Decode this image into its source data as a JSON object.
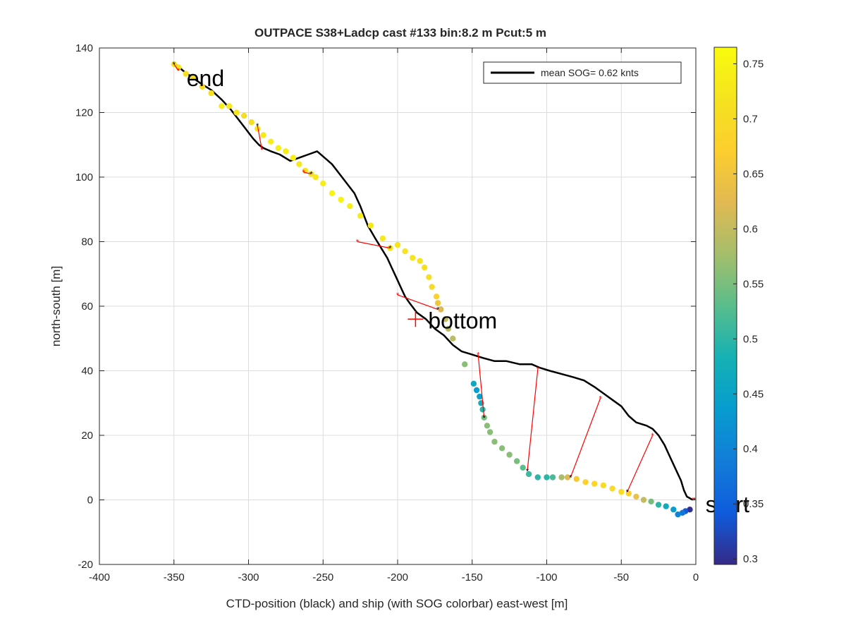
{
  "chart_data": {
    "type": "scatter",
    "title": "OUTPACE S38+Ladcp cast #133 bin:8.2 m  Pcut:5 m",
    "xlabel": "CTD-position (black) and ship (with SOG colorbar) east-west [m]",
    "ylabel": "north-south [m]",
    "xlim": [
      -400,
      0
    ],
    "ylim": [
      -20,
      140
    ],
    "xticks": [
      -400,
      -350,
      -300,
      -250,
      -200,
      -150,
      -100,
      -50,
      0
    ],
    "yticks": [
      -20,
      0,
      20,
      40,
      60,
      80,
      100,
      120,
      140
    ],
    "grid": true,
    "legend": {
      "entries": [
        "mean SOG=  0.62 knts"
      ],
      "placement": "top-right"
    },
    "colorbar": {
      "label": "",
      "range": [
        0.295,
        0.765
      ],
      "ticks": [
        0.3,
        0.35,
        0.4,
        0.45,
        0.5,
        0.55,
        0.6,
        0.65,
        0.7,
        0.75
      ],
      "colormap": "parula"
    },
    "annotations": [
      {
        "text": "end",
        "x": -350,
        "y": 131
      },
      {
        "text": "bottom",
        "x": -188,
        "y": 56
      },
      {
        "text": "start",
        "x": -2,
        "y": -1
      }
    ],
    "bottom_marker": {
      "x": -188,
      "y": 56
    },
    "ctd_track": [
      [
        -2,
        0
      ],
      [
        -6,
        1
      ],
      [
        -8,
        3
      ],
      [
        -10,
        6
      ],
      [
        -13,
        9
      ],
      [
        -17,
        13
      ],
      [
        -21,
        17
      ],
      [
        -25,
        20
      ],
      [
        -29,
        22
      ],
      [
        -33,
        23
      ],
      [
        -40,
        24
      ],
      [
        -45,
        26
      ],
      [
        -50,
        29
      ],
      [
        -56,
        31
      ],
      [
        -62,
        33
      ],
      [
        -68,
        35
      ],
      [
        -75,
        37
      ],
      [
        -82,
        38
      ],
      [
        -90,
        39
      ],
      [
        -98,
        40
      ],
      [
        -105,
        41
      ],
      [
        -110,
        42
      ],
      [
        -118,
        42
      ],
      [
        -127,
        43
      ],
      [
        -135,
        43
      ],
      [
        -143,
        44
      ],
      [
        -150,
        45
      ],
      [
        -157,
        46
      ],
      [
        -163,
        48
      ],
      [
        -169,
        51
      ],
      [
        -175,
        53
      ],
      [
        -181,
        56
      ],
      [
        -187,
        58
      ],
      [
        -192,
        61
      ],
      [
        -195,
        63
      ],
      [
        -198,
        66
      ],
      [
        -201,
        69
      ],
      [
        -204,
        72
      ],
      [
        -207,
        75
      ],
      [
        -211,
        78
      ],
      [
        -215,
        81
      ],
      [
        -220,
        85
      ],
      [
        -225,
        91
      ],
      [
        -229,
        95
      ],
      [
        -234,
        98
      ],
      [
        -239,
        101
      ],
      [
        -244,
        104
      ],
      [
        -249,
        106
      ],
      [
        -254,
        108
      ],
      [
        -260,
        107
      ],
      [
        -266,
        106
      ],
      [
        -272,
        105
      ],
      [
        -279,
        107
      ],
      [
        -285,
        108
      ],
      [
        -290,
        109
      ],
      [
        -293,
        110
      ],
      [
        -297,
        112
      ],
      [
        -302,
        115
      ],
      [
        -307,
        118
      ],
      [
        -312,
        121
      ],
      [
        -318,
        124
      ],
      [
        -325,
        127
      ],
      [
        -332,
        129
      ],
      [
        -338,
        131
      ],
      [
        -344,
        133
      ],
      [
        -349,
        135
      ]
    ],
    "ship_track": [
      {
        "x": -4,
        "y": -3,
        "sog": 0.3
      },
      {
        "x": -7,
        "y": -3.5,
        "sog": 0.34
      },
      {
        "x": -9,
        "y": -4,
        "sog": 0.38
      },
      {
        "x": -12,
        "y": -4.5,
        "sog": 0.4
      },
      {
        "x": -15,
        "y": -3,
        "sog": 0.44
      },
      {
        "x": -20,
        "y": -2,
        "sog": 0.47
      },
      {
        "x": -25,
        "y": -1.5,
        "sog": 0.5
      },
      {
        "x": -30,
        "y": -0.5,
        "sog": 0.55
      },
      {
        "x": -35,
        "y": 0,
        "sog": 0.6
      },
      {
        "x": -40,
        "y": 1,
        "sog": 0.64
      },
      {
        "x": -45,
        "y": 2,
        "sog": 0.67
      },
      {
        "x": -50,
        "y": 2.5,
        "sog": 0.7
      },
      {
        "x": -56,
        "y": 3.5,
        "sog": 0.7
      },
      {
        "x": -62,
        "y": 4.5,
        "sog": 0.7
      },
      {
        "x": -68,
        "y": 5,
        "sog": 0.69
      },
      {
        "x": -74,
        "y": 5.5,
        "sog": 0.68
      },
      {
        "x": -80,
        "y": 6.5,
        "sog": 0.66
      },
      {
        "x": -86,
        "y": 7,
        "sog": 0.62
      },
      {
        "x": -90,
        "y": 7,
        "sog": 0.58
      },
      {
        "x": -96,
        "y": 7,
        "sog": 0.52
      },
      {
        "x": -100,
        "y": 7,
        "sog": 0.5
      },
      {
        "x": -106,
        "y": 7,
        "sog": 0.5
      },
      {
        "x": -112,
        "y": 8,
        "sog": 0.51
      },
      {
        "x": -116,
        "y": 10,
        "sog": 0.53
      },
      {
        "x": -120,
        "y": 12,
        "sog": 0.55
      },
      {
        "x": -125,
        "y": 14,
        "sog": 0.56
      },
      {
        "x": -130,
        "y": 16,
        "sog": 0.56
      },
      {
        "x": -135,
        "y": 18,
        "sog": 0.56
      },
      {
        "x": -138,
        "y": 21,
        "sog": 0.56
      },
      {
        "x": -140,
        "y": 23,
        "sog": 0.56
      },
      {
        "x": -142,
        "y": 25.5,
        "sog": 0.55
      },
      {
        "x": -143,
        "y": 28,
        "sog": 0.5
      },
      {
        "x": -144,
        "y": 30,
        "sog": 0.47
      },
      {
        "x": -145,
        "y": 32,
        "sog": 0.45
      },
      {
        "x": -147,
        "y": 34,
        "sog": 0.44
      },
      {
        "x": -149,
        "y": 36,
        "sog": 0.46
      },
      {
        "x": -155,
        "y": 42,
        "sog": 0.56
      },
      {
        "x": -163,
        "y": 50,
        "sog": 0.59
      },
      {
        "x": -166,
        "y": 53,
        "sog": 0.59
      },
      {
        "x": -168,
        "y": 56,
        "sog": 0.6
      },
      {
        "x": -171,
        "y": 59,
        "sog": 0.62
      },
      {
        "x": -173,
        "y": 61,
        "sog": 0.65
      },
      {
        "x": -174,
        "y": 63,
        "sog": 0.68
      },
      {
        "x": -177,
        "y": 66,
        "sog": 0.7
      },
      {
        "x": -179,
        "y": 69,
        "sog": 0.71
      },
      {
        "x": -182,
        "y": 72,
        "sog": 0.71
      },
      {
        "x": -185,
        "y": 74,
        "sog": 0.72
      },
      {
        "x": -190,
        "y": 75,
        "sog": 0.72
      },
      {
        "x": -195,
        "y": 77,
        "sog": 0.72
      },
      {
        "x": -200,
        "y": 79,
        "sog": 0.72
      },
      {
        "x": -205,
        "y": 78,
        "sog": 0.72
      },
      {
        "x": -210,
        "y": 81,
        "sog": 0.73
      },
      {
        "x": -218,
        "y": 85,
        "sog": 0.73
      },
      {
        "x": -225,
        "y": 88,
        "sog": 0.74
      },
      {
        "x": -232,
        "y": 91,
        "sog": 0.74
      },
      {
        "x": -238,
        "y": 93,
        "sog": 0.75
      },
      {
        "x": -244,
        "y": 95,
        "sog": 0.75
      },
      {
        "x": -250,
        "y": 98,
        "sog": 0.74
      },
      {
        "x": -255,
        "y": 100,
        "sog": 0.73
      },
      {
        "x": -258,
        "y": 101,
        "sog": 0.72
      },
      {
        "x": -262,
        "y": 102,
        "sog": 0.72
      },
      {
        "x": -266,
        "y": 104,
        "sog": 0.73
      },
      {
        "x": -270,
        "y": 106,
        "sog": 0.74
      },
      {
        "x": -275,
        "y": 108,
        "sog": 0.74
      },
      {
        "x": -280,
        "y": 109,
        "sog": 0.74
      },
      {
        "x": -285,
        "y": 111,
        "sog": 0.74
      },
      {
        "x": -290,
        "y": 113,
        "sog": 0.73
      },
      {
        "x": -294,
        "y": 115,
        "sog": 0.72
      },
      {
        "x": -298,
        "y": 117,
        "sog": 0.71
      },
      {
        "x": -303,
        "y": 119,
        "sog": 0.7
      },
      {
        "x": -308,
        "y": 120,
        "sog": 0.72
      },
      {
        "x": -313,
        "y": 122,
        "sog": 0.73
      },
      {
        "x": -318,
        "y": 122,
        "sog": 0.74
      },
      {
        "x": -325,
        "y": 126,
        "sog": 0.71
      },
      {
        "x": -331,
        "y": 128,
        "sog": 0.7
      },
      {
        "x": -337,
        "y": 131,
        "sog": 0.7
      },
      {
        "x": -342,
        "y": 132,
        "sog": 0.71
      },
      {
        "x": -347,
        "y": 134,
        "sog": 0.72
      },
      {
        "x": -350,
        "y": 135,
        "sog": 0.72
      }
    ],
    "connectors": [
      {
        "ship": [
          -350,
          135
        ],
        "ctd": [
          -347,
          133
        ]
      },
      {
        "ship": [
          -294,
          116
        ],
        "ctd": [
          -291,
          108.5
        ]
      },
      {
        "ship": [
          -258,
          101
        ],
        "ctd": [
          -263,
          101.5
        ]
      },
      {
        "ship": [
          -205,
          78
        ],
        "ctd": [
          -227,
          80
        ]
      },
      {
        "ship": [
          -173,
          59
        ],
        "ctd": [
          -200,
          63.5
        ]
      },
      {
        "ship": [
          -142,
          25.5
        ],
        "ctd": [
          -146,
          45
        ]
      },
      {
        "ship": [
          -113,
          9
        ],
        "ctd": [
          -106,
          40.5
        ]
      },
      {
        "ship": [
          -84,
          7
        ],
        "ctd": [
          -64,
          31.5
        ]
      },
      {
        "ship": [
          -46,
          2.5
        ],
        "ctd": [
          -29,
          20
        ]
      },
      {
        "ship": [
          -1,
          0
        ],
        "ctd": [
          -2,
          0
        ]
      }
    ]
  }
}
